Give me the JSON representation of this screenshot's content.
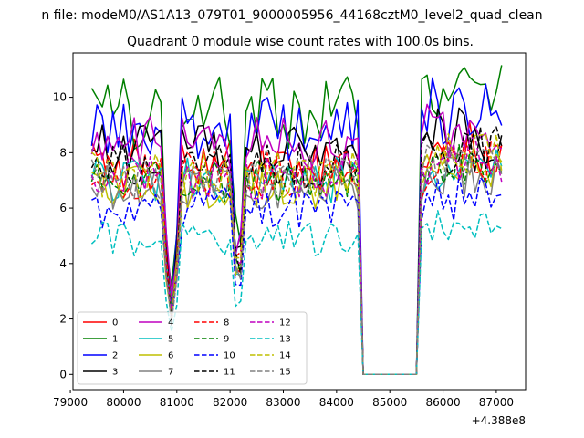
{
  "chart_data": {
    "type": "line",
    "suptitle": "n file: modeM0/AS1A13_079T01_9000005956_44168cztM0_level2_quad_clean",
    "title": "Quadrant 0 module wise count rates with 100.0s bins.",
    "xlabel": "",
    "ylabel": "",
    "offset_label": "+4.388e8",
    "xlim": [
      79050,
      87550
    ],
    "ylim": [
      -0.55,
      11.6
    ],
    "xticks": [
      79000,
      80000,
      81000,
      82000,
      83000,
      84000,
      85000,
      86000,
      87000
    ],
    "yticks": [
      0,
      2,
      4,
      6,
      8,
      10
    ],
    "grid": false,
    "legend_position": "lower-left",
    "legend_columns": 4,
    "series": [
      {
        "name": "0",
        "color": "#ff0000",
        "dash": "solid",
        "base": 7.6,
        "amp": 0.12
      },
      {
        "name": "1",
        "color": "#008000",
        "dash": "solid",
        "base": 9.45,
        "amp": 0.14
      },
      {
        "name": "2",
        "color": "#0000ff",
        "dash": "solid",
        "base": 8.85,
        "amp": 0.13
      },
      {
        "name": "3",
        "color": "#000000",
        "dash": "solid",
        "base": 8.05,
        "amp": 0.12
      },
      {
        "name": "4",
        "color": "#bf00bf",
        "dash": "solid",
        "base": 8.35,
        "amp": 0.12
      },
      {
        "name": "5",
        "color": "#00bfbf",
        "dash": "solid",
        "base": 7.0,
        "amp": 0.12
      },
      {
        "name": "6",
        "color": "#bfbf00",
        "dash": "solid",
        "base": 6.8,
        "amp": 0.12
      },
      {
        "name": "7",
        "color": "#808080",
        "dash": "solid",
        "base": 6.7,
        "amp": 0.12
      },
      {
        "name": "8",
        "color": "#ff0000",
        "dash": "dashed",
        "base": 7.2,
        "amp": 0.12
      },
      {
        "name": "9",
        "color": "#008000",
        "dash": "dashed",
        "base": 7.0,
        "amp": 0.12
      },
      {
        "name": "10",
        "color": "#0000ff",
        "dash": "dashed",
        "base": 5.95,
        "amp": 0.13
      },
      {
        "name": "11",
        "color": "#000000",
        "dash": "dashed",
        "base": 7.5,
        "amp": 0.12
      },
      {
        "name": "12",
        "color": "#bf00bf",
        "dash": "dashed",
        "base": 7.15,
        "amp": 0.12
      },
      {
        "name": "13",
        "color": "#00bfbf",
        "dash": "dashed",
        "base": 4.9,
        "amp": 0.13
      },
      {
        "name": "14",
        "color": "#bfbf00",
        "dash": "dashed",
        "base": 7.25,
        "amp": 0.12
      },
      {
        "name": "15",
        "color": "#808080",
        "dash": "dashed",
        "base": 7.05,
        "amp": 0.12
      }
    ],
    "time_profile": {
      "x_start": 79400,
      "x_end": 87150,
      "step": 100,
      "gap_start": 84450,
      "gap_end": 85500,
      "dip_times": [
        80850,
        80950,
        82150
      ],
      "late_segment_start": 85700,
      "late_segment_factor": 1.07
    }
  }
}
